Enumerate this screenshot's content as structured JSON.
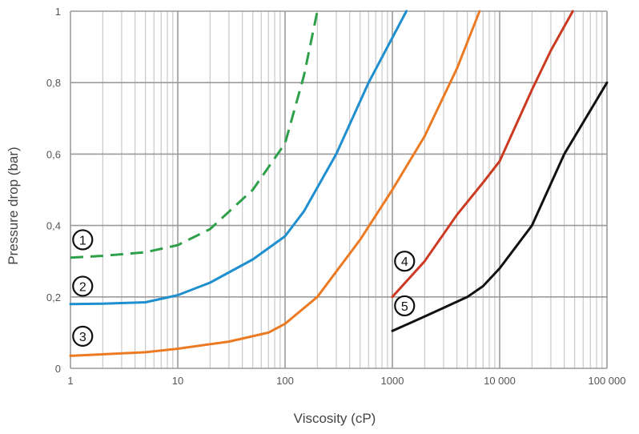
{
  "chart_data": {
    "type": "line",
    "xlabel": "Viscosity (cP)",
    "ylabel": "Pressure drop (bar)",
    "xscale": "log",
    "xlim": [
      1,
      100000
    ],
    "ylim": [
      0,
      1
    ],
    "grid": true,
    "xtick_values": [
      1,
      10,
      100,
      1000,
      10000,
      100000
    ],
    "xtick_labels": [
      "1",
      "10",
      "100",
      "1000",
      "10 000",
      "100 000"
    ],
    "ytick_values": [
      0,
      0.2,
      0.4,
      0.6,
      0.8,
      1
    ],
    "ytick_labels": [
      "0",
      "0,2",
      "0,4",
      "0,6",
      "0,8",
      "1"
    ],
    "series": [
      {
        "label": "1",
        "color": "#2ea04a",
        "dashed": true,
        "label_at": [
          1.3,
          0.36
        ],
        "points": [
          [
            1,
            0.31
          ],
          [
            2,
            0.315
          ],
          [
            5,
            0.325
          ],
          [
            10,
            0.345
          ],
          [
            20,
            0.39
          ],
          [
            50,
            0.5
          ],
          [
            100,
            0.63
          ],
          [
            150,
            0.82
          ],
          [
            200,
            1.0
          ]
        ]
      },
      {
        "label": "2",
        "color": "#1f8fcf",
        "dashed": false,
        "label_at": [
          1.3,
          0.23
        ],
        "points": [
          [
            1,
            0.18
          ],
          [
            2,
            0.181
          ],
          [
            5,
            0.185
          ],
          [
            10,
            0.205
          ],
          [
            20,
            0.24
          ],
          [
            50,
            0.305
          ],
          [
            100,
            0.37
          ],
          [
            150,
            0.44
          ],
          [
            300,
            0.6
          ],
          [
            600,
            0.8
          ],
          [
            1350,
            1.0
          ]
        ]
      },
      {
        "label": "3",
        "color": "#ec7a23",
        "dashed": false,
        "label_at": [
          1.3,
          0.09
        ],
        "points": [
          [
            1,
            0.035
          ],
          [
            5,
            0.045
          ],
          [
            10,
            0.055
          ],
          [
            30,
            0.075
          ],
          [
            70,
            0.1
          ],
          [
            100,
            0.125
          ],
          [
            200,
            0.2
          ],
          [
            500,
            0.36
          ],
          [
            1000,
            0.5
          ],
          [
            2000,
            0.65
          ],
          [
            4000,
            0.84
          ],
          [
            6500,
            1.0
          ]
        ]
      },
      {
        "label": "4",
        "color": "#cc3a22",
        "dashed": false,
        "label_at": [
          1300,
          0.3
        ],
        "points": [
          [
            1000,
            0.2
          ],
          [
            2000,
            0.3
          ],
          [
            4000,
            0.43
          ],
          [
            7000,
            0.52
          ],
          [
            10000,
            0.58
          ],
          [
            20000,
            0.78
          ],
          [
            30000,
            0.89
          ],
          [
            48000,
            1.0
          ]
        ]
      },
      {
        "label": "5",
        "color": "#111111",
        "dashed": false,
        "label_at": [
          1300,
          0.175
        ],
        "points": [
          [
            1000,
            0.105
          ],
          [
            2000,
            0.145
          ],
          [
            5000,
            0.2
          ],
          [
            7000,
            0.23
          ],
          [
            10000,
            0.28
          ],
          [
            20000,
            0.4
          ],
          [
            40000,
            0.6
          ],
          [
            100000,
            0.8
          ]
        ]
      }
    ]
  }
}
